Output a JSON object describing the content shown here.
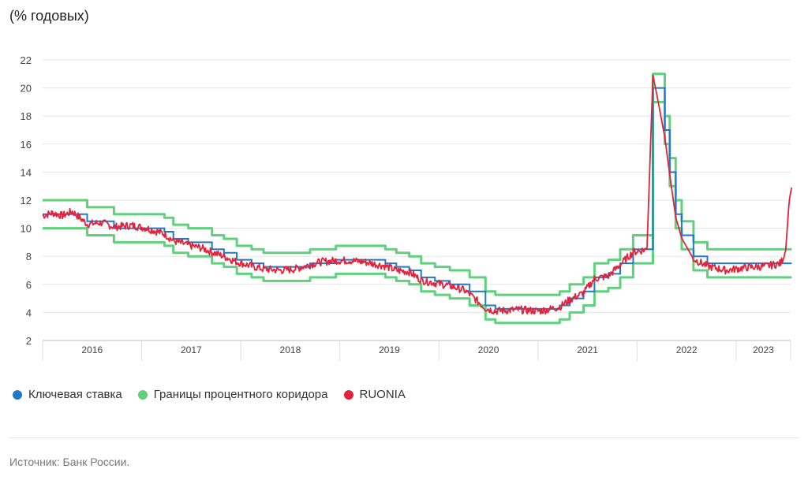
{
  "chart_data": {
    "type": "line",
    "units": "(% годовых)",
    "ylim": [
      2,
      22
    ],
    "yticks": [
      2,
      4,
      6,
      8,
      10,
      12,
      14,
      16,
      18,
      20,
      22
    ],
    "x_years": [
      "2016",
      "2017",
      "2018",
      "2019",
      "2020",
      "2021",
      "2022",
      "2023"
    ],
    "xlim": [
      2016.0,
      2023.55
    ],
    "grid": true,
    "legend_position": "bottom-left",
    "series": [
      {
        "name": "Ключевая ставка",
        "color": "#1f78c8",
        "step": true,
        "points": [
          [
            2016.0,
            11.0
          ],
          [
            2016.45,
            10.5
          ],
          [
            2016.72,
            10.0
          ],
          [
            2017.23,
            9.75
          ],
          [
            2017.32,
            9.25
          ],
          [
            2017.47,
            9.0
          ],
          [
            2017.71,
            8.5
          ],
          [
            2017.83,
            8.25
          ],
          [
            2017.96,
            7.75
          ],
          [
            2018.11,
            7.5
          ],
          [
            2018.23,
            7.25
          ],
          [
            2018.7,
            7.5
          ],
          [
            2018.96,
            7.75
          ],
          [
            2019.46,
            7.5
          ],
          [
            2019.57,
            7.25
          ],
          [
            2019.7,
            7.0
          ],
          [
            2019.82,
            6.5
          ],
          [
            2019.96,
            6.25
          ],
          [
            2020.11,
            6.0
          ],
          [
            2020.31,
            5.5
          ],
          [
            2020.47,
            4.5
          ],
          [
            2020.57,
            4.25
          ],
          [
            2021.22,
            4.5
          ],
          [
            2021.32,
            5.0
          ],
          [
            2021.46,
            5.5
          ],
          [
            2021.57,
            6.5
          ],
          [
            2021.71,
            6.75
          ],
          [
            2021.83,
            7.5
          ],
          [
            2021.96,
            8.5
          ],
          [
            2022.16,
            20.0
          ],
          [
            2022.28,
            17.0
          ],
          [
            2022.33,
            14.0
          ],
          [
            2022.39,
            11.0
          ],
          [
            2022.45,
            9.5
          ],
          [
            2022.57,
            8.0
          ],
          [
            2022.71,
            7.5
          ],
          [
            2023.56,
            7.5
          ]
        ]
      },
      {
        "name": "Границы процентного коридора",
        "color": "#5fd17d",
        "step": true,
        "upper": [
          [
            2016.0,
            12.0
          ],
          [
            2016.45,
            11.5
          ],
          [
            2016.72,
            11.0
          ],
          [
            2017.23,
            10.75
          ],
          [
            2017.32,
            10.25
          ],
          [
            2017.47,
            10.0
          ],
          [
            2017.71,
            9.5
          ],
          [
            2017.83,
            9.25
          ],
          [
            2017.96,
            8.75
          ],
          [
            2018.11,
            8.5
          ],
          [
            2018.23,
            8.25
          ],
          [
            2018.7,
            8.5
          ],
          [
            2018.96,
            8.75
          ],
          [
            2019.46,
            8.5
          ],
          [
            2019.57,
            8.25
          ],
          [
            2019.7,
            8.0
          ],
          [
            2019.82,
            7.5
          ],
          [
            2019.96,
            7.25
          ],
          [
            2020.11,
            7.0
          ],
          [
            2020.31,
            6.5
          ],
          [
            2020.47,
            5.5
          ],
          [
            2020.57,
            5.25
          ],
          [
            2021.22,
            5.5
          ],
          [
            2021.32,
            6.0
          ],
          [
            2021.46,
            6.5
          ],
          [
            2021.57,
            7.5
          ],
          [
            2021.71,
            7.75
          ],
          [
            2021.83,
            8.5
          ],
          [
            2021.96,
            9.5
          ],
          [
            2022.16,
            21.0
          ],
          [
            2022.28,
            18.0
          ],
          [
            2022.33,
            15.0
          ],
          [
            2022.39,
            12.0
          ],
          [
            2022.45,
            10.5
          ],
          [
            2022.57,
            9.0
          ],
          [
            2022.71,
            8.5
          ],
          [
            2023.56,
            8.5
          ]
        ],
        "lower": [
          [
            2016.0,
            10.0
          ],
          [
            2016.45,
            9.5
          ],
          [
            2016.72,
            9.0
          ],
          [
            2017.23,
            8.75
          ],
          [
            2017.32,
            8.25
          ],
          [
            2017.47,
            8.0
          ],
          [
            2017.71,
            7.5
          ],
          [
            2017.83,
            7.25
          ],
          [
            2017.96,
            6.75
          ],
          [
            2018.11,
            6.5
          ],
          [
            2018.23,
            6.25
          ],
          [
            2018.7,
            6.5
          ],
          [
            2018.96,
            6.75
          ],
          [
            2019.46,
            6.5
          ],
          [
            2019.57,
            6.25
          ],
          [
            2019.7,
            6.0
          ],
          [
            2019.82,
            5.5
          ],
          [
            2019.96,
            5.25
          ],
          [
            2020.11,
            5.0
          ],
          [
            2020.31,
            4.5
          ],
          [
            2020.47,
            3.5
          ],
          [
            2020.57,
            3.25
          ],
          [
            2021.22,
            3.5
          ],
          [
            2021.32,
            4.0
          ],
          [
            2021.46,
            4.5
          ],
          [
            2021.57,
            5.5
          ],
          [
            2021.71,
            5.75
          ],
          [
            2021.83,
            6.5
          ],
          [
            2021.96,
            7.5
          ],
          [
            2022.16,
            19.0
          ],
          [
            2022.28,
            16.0
          ],
          [
            2022.33,
            13.0
          ],
          [
            2022.39,
            10.0
          ],
          [
            2022.45,
            8.5
          ],
          [
            2022.57,
            7.0
          ],
          [
            2022.71,
            6.5
          ],
          [
            2023.56,
            6.5
          ]
        ]
      },
      {
        "name": "RUONIA",
        "color": "#e3233c",
        "points": [
          [
            2016.0,
            10.9
          ],
          [
            2016.1,
            11.1
          ],
          [
            2016.2,
            10.9
          ],
          [
            2016.3,
            11.2
          ],
          [
            2016.45,
            10.3
          ],
          [
            2016.6,
            10.4
          ],
          [
            2016.72,
            10.1
          ],
          [
            2016.9,
            10.2
          ],
          [
            2017.05,
            10.0
          ],
          [
            2017.23,
            9.6
          ],
          [
            2017.32,
            9.1
          ],
          [
            2017.47,
            8.8
          ],
          [
            2017.6,
            8.6
          ],
          [
            2017.71,
            8.3
          ],
          [
            2017.83,
            8.0
          ],
          [
            2017.96,
            7.6
          ],
          [
            2018.11,
            7.3
          ],
          [
            2018.23,
            7.1
          ],
          [
            2018.4,
            7.0
          ],
          [
            2018.55,
            7.1
          ],
          [
            2018.7,
            7.4
          ],
          [
            2018.8,
            7.6
          ],
          [
            2018.96,
            7.7
          ],
          [
            2019.1,
            7.7
          ],
          [
            2019.25,
            7.6
          ],
          [
            2019.46,
            7.3
          ],
          [
            2019.57,
            7.0
          ],
          [
            2019.7,
            6.9
          ],
          [
            2019.82,
            6.3
          ],
          [
            2019.96,
            6.1
          ],
          [
            2020.11,
            5.9
          ],
          [
            2020.25,
            5.6
          ],
          [
            2020.31,
            5.3
          ],
          [
            2020.47,
            4.3
          ],
          [
            2020.57,
            4.1
          ],
          [
            2020.8,
            4.2
          ],
          [
            2021.0,
            4.1
          ],
          [
            2021.1,
            4.2
          ],
          [
            2021.22,
            4.4
          ],
          [
            2021.32,
            4.9
          ],
          [
            2021.46,
            5.4
          ],
          [
            2021.57,
            6.4
          ],
          [
            2021.71,
            6.6
          ],
          [
            2021.83,
            7.4
          ],
          [
            2021.96,
            8.3
          ],
          [
            2022.1,
            8.5
          ],
          [
            2022.16,
            20.9
          ],
          [
            2022.2,
            19.5
          ],
          [
            2022.28,
            16.5
          ],
          [
            2022.33,
            13.8
          ],
          [
            2022.39,
            10.8
          ],
          [
            2022.45,
            9.3
          ],
          [
            2022.57,
            7.8
          ],
          [
            2022.71,
            7.3
          ],
          [
            2022.9,
            7.0
          ],
          [
            2023.1,
            7.2
          ],
          [
            2023.3,
            7.3
          ],
          [
            2023.45,
            7.5
          ],
          [
            2023.5,
            8.4
          ],
          [
            2023.54,
            12.4
          ],
          [
            2023.56,
            12.9
          ]
        ]
      }
    ]
  },
  "legend": [
    {
      "label": "Ключевая ставка",
      "color": "#1f78c8"
    },
    {
      "label": "Границы процентного коридора",
      "color": "#5fd17d"
    },
    {
      "label": "RUONIA",
      "color": "#e3233c"
    }
  ],
  "source": "Источник: Банк России."
}
